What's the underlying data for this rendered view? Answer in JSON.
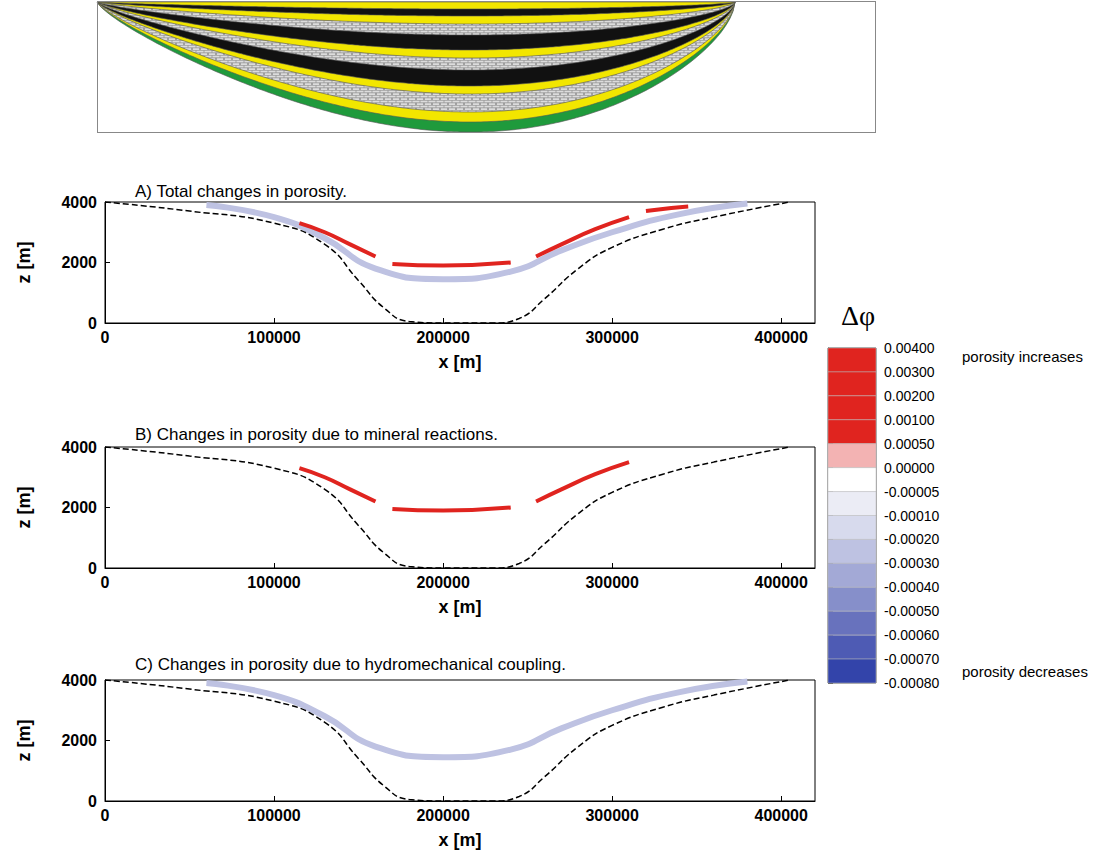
{
  "chart_data": [
    {
      "type": "line",
      "title": "A) Total changes in porosity.",
      "xlabel": "x [m]",
      "ylabel": "z [m]",
      "xlim": [
        0,
        420000
      ],
      "xticks": [
        0,
        100000,
        200000,
        300000,
        400000
      ],
      "ylim": [
        0,
        4000
      ],
      "yticks": [
        0,
        2000,
        4000
      ],
      "outline": {
        "line_style": "dashed",
        "color": "#000000",
        "x": [
          0,
          50000,
          100000,
          130000,
          150000,
          165000,
          180000,
          200000,
          230000,
          245000,
          260000,
          280000,
          300000,
          330000,
          360000,
          405000
        ],
        "z": [
          4000,
          3700,
          3300,
          2600,
          1400,
          500,
          50,
          0,
          0,
          150,
          800,
          1800,
          2500,
          3100,
          3500,
          4000
        ]
      },
      "bands": [
        {
          "dphi": -0.00025,
          "x": [
            60000,
            100000,
            130000,
            160000,
            200000,
            240000,
            270000,
            300000,
            340000,
            380000
          ],
          "z": [
            3900,
            3500,
            2800,
            1800,
            1450,
            1700,
            2400,
            3000,
            3600,
            3950
          ]
        },
        {
          "dphi": 0.002,
          "x": [
            115000,
            130000,
            145000,
            160000
          ],
          "z": [
            3300,
            3000,
            2600,
            2200
          ]
        },
        {
          "dphi": 0.002,
          "x": [
            170000,
            200000,
            240000
          ],
          "z": [
            1950,
            1900,
            2000
          ]
        },
        {
          "dphi": 0.002,
          "x": [
            255000,
            270000,
            290000,
            310000
          ],
          "z": [
            2200,
            2600,
            3100,
            3500
          ]
        },
        {
          "dphi": 0.002,
          "x": [
            320000,
            335000,
            345000
          ],
          "z": [
            3700,
            3800,
            3850
          ]
        }
      ]
    },
    {
      "type": "line",
      "title": "B) Changes in porosity due to mineral reactions.",
      "xlabel": "x [m]",
      "ylabel": "z [m]",
      "xlim": [
        0,
        420000
      ],
      "xticks": [
        0,
        100000,
        200000,
        300000,
        400000
      ],
      "ylim": [
        0,
        4000
      ],
      "yticks": [
        0,
        2000,
        4000
      ],
      "outline": {
        "line_style": "dashed",
        "color": "#000000",
        "x": [
          0,
          50000,
          100000,
          130000,
          150000,
          165000,
          180000,
          200000,
          230000,
          245000,
          260000,
          280000,
          300000,
          330000,
          360000,
          405000
        ],
        "z": [
          4000,
          3700,
          3300,
          2600,
          1400,
          500,
          50,
          0,
          0,
          150,
          800,
          1800,
          2500,
          3100,
          3500,
          4000
        ]
      },
      "bands": [
        {
          "dphi": 0.002,
          "x": [
            115000,
            130000,
            145000,
            160000
          ],
          "z": [
            3300,
            3000,
            2600,
            2200
          ]
        },
        {
          "dphi": 0.002,
          "x": [
            170000,
            200000,
            240000
          ],
          "z": [
            1950,
            1900,
            2000
          ]
        },
        {
          "dphi": 0.002,
          "x": [
            255000,
            270000,
            290000,
            310000
          ],
          "z": [
            2200,
            2600,
            3100,
            3500
          ]
        }
      ]
    },
    {
      "type": "line",
      "title": "C) Changes in porosity due to hydromechanical coupling.",
      "xlabel": "x [m]",
      "ylabel": "z [m]",
      "xlim": [
        0,
        420000
      ],
      "xticks": [
        0,
        100000,
        200000,
        300000,
        400000
      ],
      "ylim": [
        0,
        4000
      ],
      "yticks": [
        0,
        2000,
        4000
      ],
      "outline": {
        "line_style": "dashed",
        "color": "#000000",
        "x": [
          0,
          50000,
          100000,
          130000,
          150000,
          165000,
          180000,
          200000,
          230000,
          245000,
          260000,
          280000,
          300000,
          330000,
          360000,
          405000
        ],
        "z": [
          4000,
          3700,
          3300,
          2600,
          1400,
          500,
          50,
          0,
          0,
          150,
          800,
          1800,
          2500,
          3100,
          3500,
          4000
        ]
      },
      "bands": [
        {
          "dphi": -0.00025,
          "x": [
            60000,
            100000,
            130000,
            160000,
            200000,
            240000,
            270000,
            300000,
            340000,
            380000
          ],
          "z": [
            3900,
            3500,
            2800,
            1800,
            1450,
            1700,
            2400,
            3000,
            3600,
            3950
          ]
        }
      ]
    },
    {
      "type": "colorbar",
      "title": "Δφ",
      "annotations": [
        "porosity increases",
        "porosity decreases"
      ],
      "ticks": [
        {
          "value": 0.004,
          "label": "0.00400"
        },
        {
          "value": 0.003,
          "label": "0.00300"
        },
        {
          "value": 0.002,
          "label": "0.00200"
        },
        {
          "value": 0.001,
          "label": "0.00100"
        },
        {
          "value": 0.0005,
          "label": "0.00050"
        },
        {
          "value": 0,
          "label": "0.00000"
        },
        {
          "value": -5e-05,
          "label": "-0.00005"
        },
        {
          "value": -0.0001,
          "label": "-0.00010"
        },
        {
          "value": -0.0002,
          "label": "-0.00020"
        },
        {
          "value": -0.0003,
          "label": "-0.00030"
        },
        {
          "value": -0.0004,
          "label": "-0.00040"
        },
        {
          "value": -0.0005,
          "label": "-0.00050"
        },
        {
          "value": -0.0006,
          "label": "-0.00060"
        },
        {
          "value": -0.0007,
          "label": "-0.00070"
        },
        {
          "value": -0.0008,
          "label": "-0.00080"
        }
      ],
      "colors": [
        "#e0241f",
        "#e0241f",
        "#e0241f",
        "#e0241f",
        "#f3b3b3",
        "#ffffff",
        "#ebecf5",
        "#d7daed",
        "#bec2e2",
        "#a3a9d6",
        "#868fca",
        "#6872bd",
        "#4e5bb4",
        "#3344aa"
      ]
    }
  ]
}
